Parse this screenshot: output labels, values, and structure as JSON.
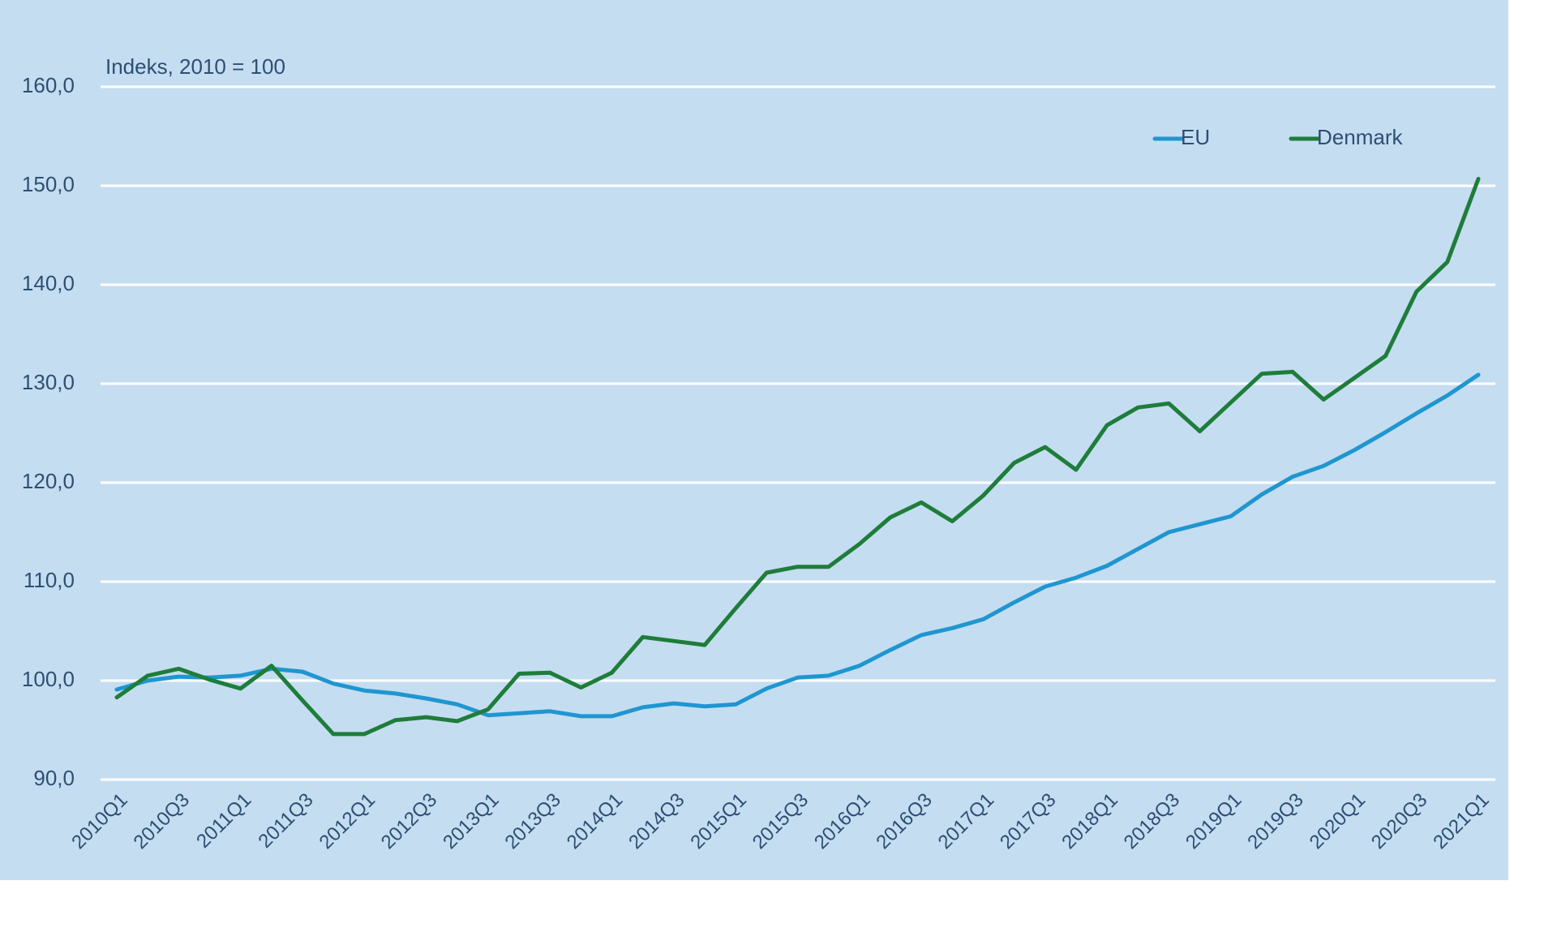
{
  "chart_data": {
    "type": "line",
    "subtitle": "Indeks, 2010 = 100",
    "categories": [
      "2010Q1",
      null,
      "2010Q3",
      null,
      "2011Q1",
      null,
      "2011Q3",
      null,
      "2012Q1",
      null,
      "2012Q3",
      null,
      "2013Q1",
      null,
      "2013Q3",
      null,
      "2014Q1",
      null,
      "2014Q3",
      null,
      "2015Q1",
      null,
      "2015Q3",
      null,
      "2016Q1",
      null,
      "2016Q3",
      null,
      "2017Q1",
      null,
      "2017Q3",
      null,
      "2018Q1",
      null,
      "2018Q3",
      null,
      "2019Q1",
      null,
      "2019Q3",
      null,
      "2020Q1",
      null,
      "2020Q3",
      null,
      "2021Q1"
    ],
    "series": [
      {
        "name": "EU",
        "color": "#1f96d0",
        "values": [
          99.1,
          100.0,
          100.4,
          100.3,
          100.5,
          101.2,
          100.9,
          99.7,
          99.0,
          98.7,
          98.2,
          97.6,
          96.5,
          96.7,
          96.9,
          96.4,
          96.4,
          97.3,
          97.7,
          97.4,
          97.6,
          99.2,
          100.3,
          100.5,
          101.5,
          103.1,
          104.6,
          105.3,
          106.2,
          107.9,
          109.5,
          110.4,
          111.6,
          113.3,
          115.0,
          115.8,
          116.6,
          118.8,
          120.6,
          121.7,
          123.3,
          125.1,
          127.0,
          128.8,
          130.9
        ]
      },
      {
        "name": "Denmark",
        "color": "#1e7d3a",
        "values": [
          98.3,
          100.5,
          101.2,
          100.1,
          99.2,
          101.5,
          98.0,
          94.6,
          94.6,
          96.0,
          96.3,
          95.9,
          97.1,
          100.7,
          100.8,
          99.3,
          100.8,
          104.4,
          104.0,
          103.6,
          107.3,
          110.9,
          111.5,
          111.5,
          113.8,
          116.5,
          118.0,
          116.1,
          118.7,
          122.0,
          123.6,
          121.3,
          125.8,
          127.6,
          128.0,
          125.2,
          128.1,
          131.0,
          131.2,
          128.4,
          130.6,
          132.8,
          139.3,
          142.3,
          150.7
        ]
      }
    ],
    "ylim": [
      90,
      160
    ],
    "yticks": [
      {
        "value": 90,
        "label": "90,0"
      },
      {
        "value": 100,
        "label": "100,0"
      },
      {
        "value": 110,
        "label": "110,0"
      },
      {
        "value": 120,
        "label": "120,0"
      },
      {
        "value": 130,
        "label": "130,0"
      },
      {
        "value": 140,
        "label": "140,0"
      },
      {
        "value": 150,
        "label": "150,0"
      },
      {
        "value": 160,
        "label": "160,0"
      }
    ],
    "grid": true,
    "legend": "top-right"
  }
}
